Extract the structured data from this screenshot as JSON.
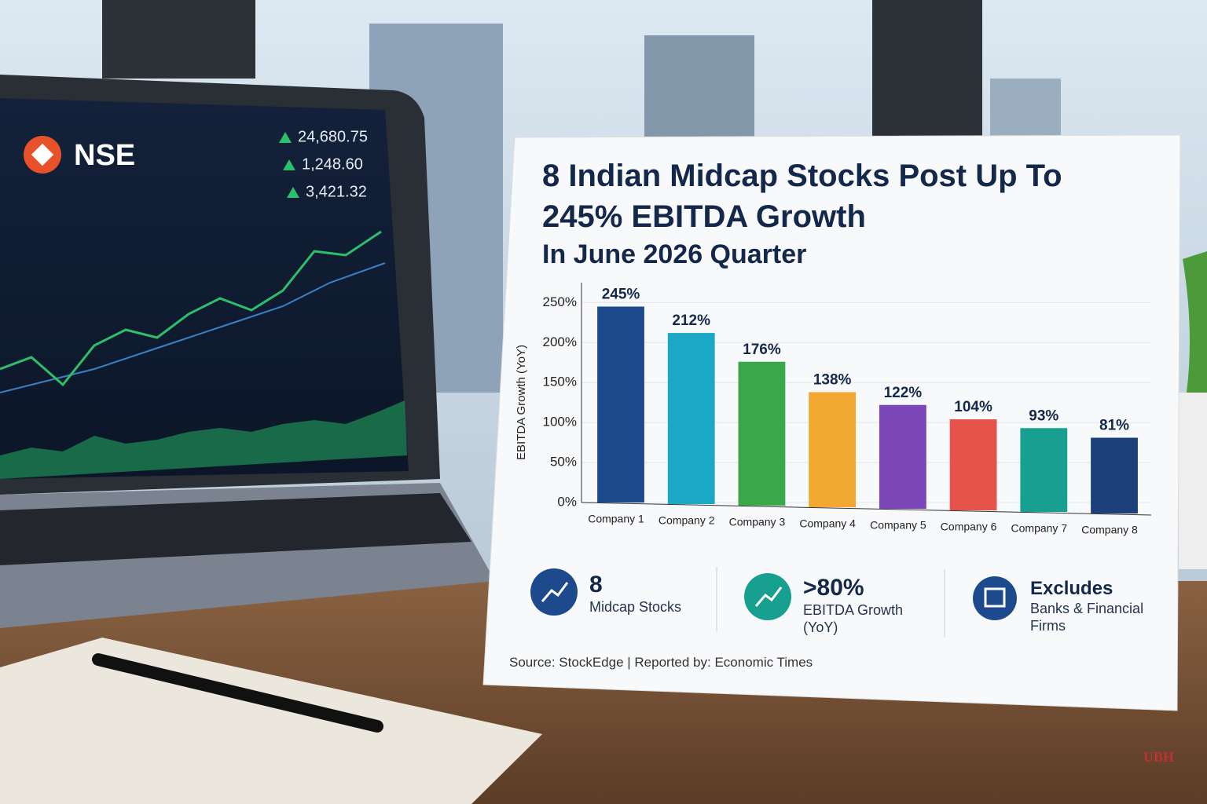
{
  "laptop": {
    "logo": "NSE",
    "tickers": [
      "24,680.75",
      "1,248.60",
      "3,421.32"
    ]
  },
  "chart_data": {
    "type": "bar",
    "title": "8 Indian Midcap Stocks Post Up To 245% EBITDA Growth",
    "subtitle": "In June 2026 Quarter",
    "y_label": "EBITDA Growth (YoY)",
    "categories": [
      "Company 1",
      "Company 2",
      "Company 3",
      "Company 4",
      "Company 5",
      "Company 6",
      "Company 7",
      "Company 8"
    ],
    "values": [
      245,
      212,
      176,
      138,
      122,
      104,
      93,
      81
    ],
    "value_labels": [
      "245%",
      "212%",
      "176%",
      "138%",
      "122%",
      "104%",
      "93%",
      "81%"
    ],
    "colors": [
      "#1d4a8c",
      "#1ba8c6",
      "#3aa84a",
      "#f0a830",
      "#7b46b8",
      "#e5534b",
      "#17a08f",
      "#1d3f7a"
    ],
    "ylim": [
      0,
      270
    ],
    "yticks": [
      {
        "value": 0,
        "label": "0%"
      },
      {
        "value": 50,
        "label": "50%"
      },
      {
        "value": 100,
        "label": "100%"
      },
      {
        "value": 150,
        "label": "150%"
      },
      {
        "value": 200,
        "label": "200%"
      },
      {
        "value": 250,
        "label": "250%"
      }
    ],
    "grid": true
  },
  "stats": [
    {
      "value": "8",
      "label": "Midcap Stocks"
    },
    {
      "value": ">80%",
      "label": "EBITDA Growth (YoY)"
    },
    {
      "value": "Excludes",
      "label": "Banks & Financial Firms"
    }
  ],
  "source": "Source: StockEdge | Reported by: Economic Times",
  "watermark": "UBH"
}
